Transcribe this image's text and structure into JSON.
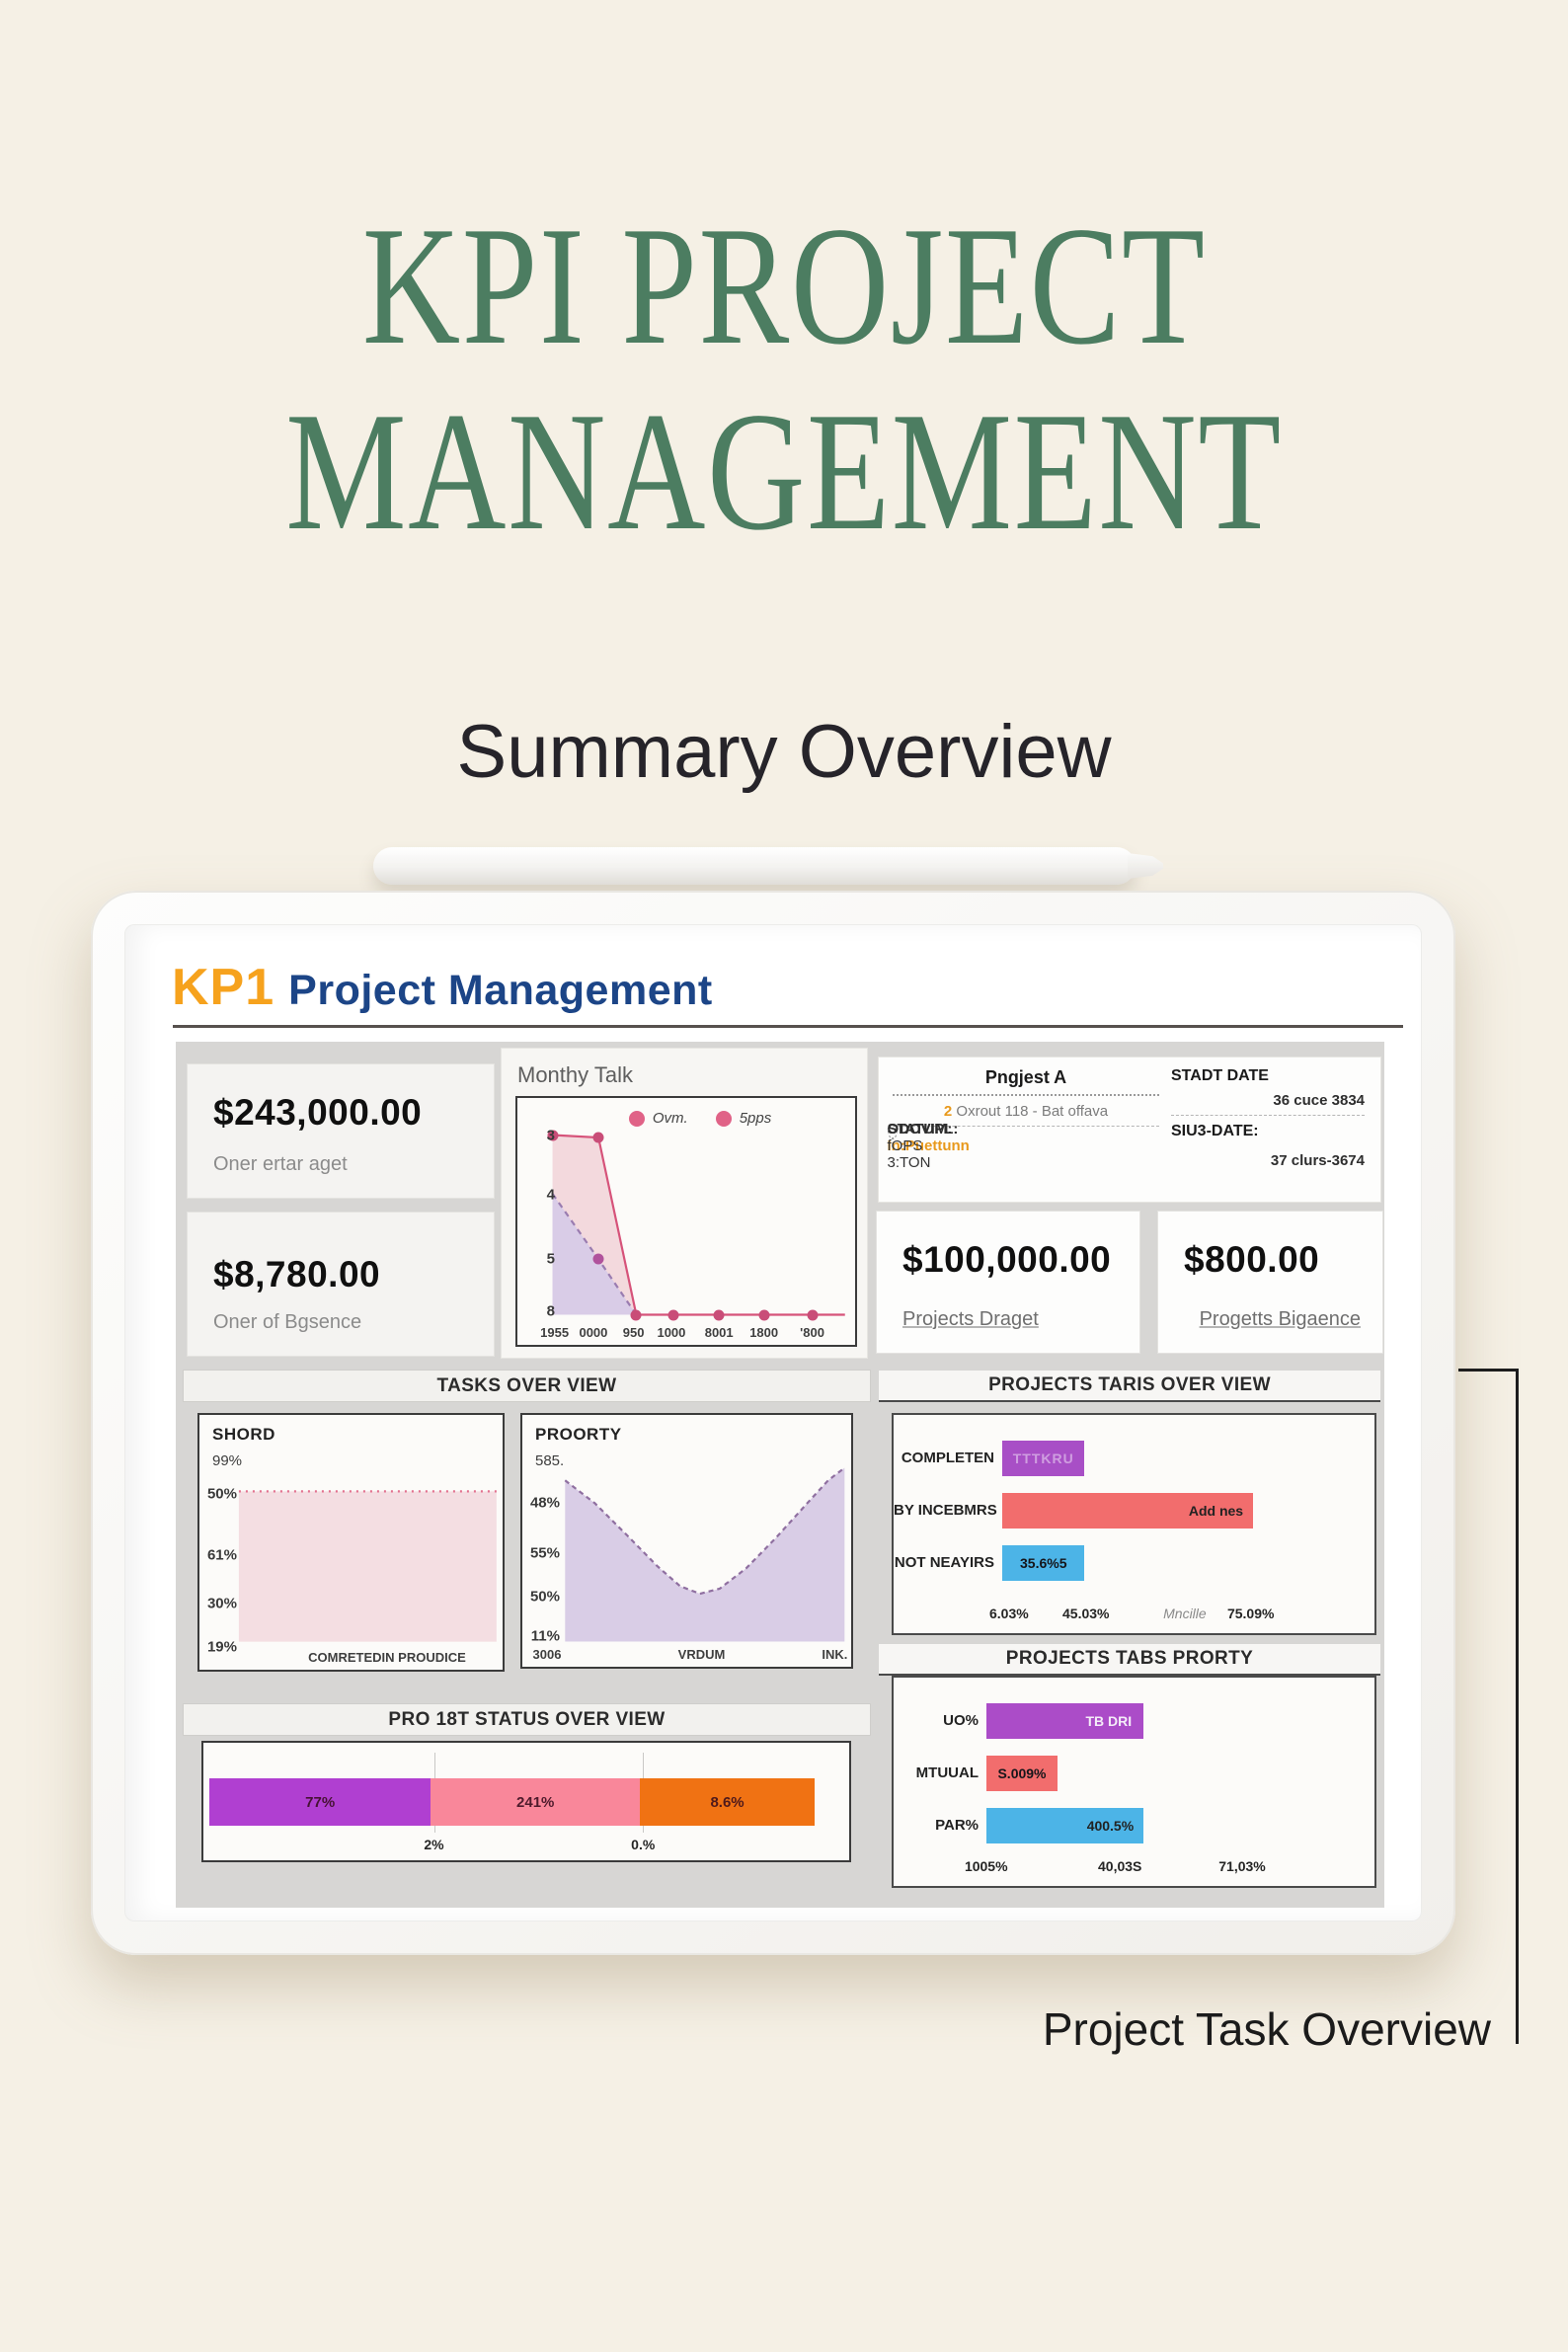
{
  "page": {
    "title_line1": "KPI PROJECT",
    "title_line2": "MANAGEMENT",
    "subtitle": "Summary Overview",
    "callout": "Project Task Overview"
  },
  "dashboard": {
    "brand": "KP1",
    "heading": "Project Management",
    "cards": [
      {
        "value": "$243,000.00",
        "label": "Oner ertar aget"
      },
      {
        "value": "$8,780.00",
        "label": "Oner of Bgsence"
      },
      {
        "value": "$100,000.00",
        "label": "Projects Draget"
      },
      {
        "value": "$800.00",
        "label": "Progetts Bigaence"
      }
    ],
    "project_info": {
      "title": "Pngjest A",
      "line1_num": "2",
      "line1_rest": "Oxrout 118 - Bat offava",
      "status_label": "STATUPL:",
      "status_value": "In:Puettunn",
      "owner_label": "ODOVIM:",
      "owner_value": "fOPS 3:TON",
      "start_label": "STADT DATE",
      "start_value": "36 cuce 3834",
      "end_label": "SIU3-DATE:",
      "end_value": "37 clurs-3674"
    },
    "section_headers": {
      "tasks": "TASKS OVER VIEW"
    }
  },
  "chart_data": [
    {
      "id": "monthly_talk",
      "type": "area",
      "title": "Monthy Talk",
      "legend": [
        {
          "t": "Ovm."
        },
        {
          "t": "5pps"
        }
      ],
      "y_ticks": [
        {
          "t": "3",
          "p": 15
        },
        {
          "t": "4",
          "p": 39
        },
        {
          "t": "5",
          "p": 65
        },
        {
          "t": "8",
          "p": 86.5
        }
      ],
      "x_ticks": [
        {
          "t": "1955",
          "p": 11
        },
        {
          "t": "0000",
          "p": 22.5
        },
        {
          "t": "950",
          "p": 34.4
        },
        {
          "t": "1000",
          "p": 45.6
        },
        {
          "t": "8001",
          "p": 59.7
        },
        {
          "t": "1800",
          "p": 73
        },
        {
          "t": "'800",
          "p": 87.3
        }
      ],
      "series": [
        {
          "name": "Ovm.",
          "dash": "none",
          "color": "#d6537a",
          "dotcolor": "#c94d78",
          "fill": "#f3d9dd",
          "points": [
            [
              10.4,
              15
            ],
            [
              24,
              16
            ],
            [
              35.2,
              87.8
            ],
            [
              97,
              87.8
            ]
          ],
          "baseline": 87.8,
          "dots": [
            [
              10.4,
              15
            ],
            [
              24,
              16
            ],
            [
              35.2,
              87.8
            ],
            [
              46.2,
              87.8
            ],
            [
              59.7,
              87.8
            ],
            [
              73,
              87.8
            ],
            [
              87.3,
              87.8
            ]
          ]
        },
        {
          "name": "5pps",
          "dash": "6,5",
          "color": "#9a7cb0",
          "dotcolor": "#b0529c",
          "fill": "#d9cce7",
          "points": [
            [
              10.4,
              38.8
            ],
            [
              24,
              65.3
            ],
            [
              35.2,
              87.8
            ]
          ],
          "baseline": 87.8,
          "dots": [
            [
              24,
              65.3
            ]
          ]
        }
      ]
    },
    {
      "id": "shord",
      "type": "area",
      "title": "SHORD",
      "subtitle": "99%",
      "y_ticks": [
        {
          "t": "50%",
          "p": 31
        },
        {
          "t": "61%",
          "p": 55
        },
        {
          "t": "30%",
          "p": 74
        },
        {
          "t": "19%",
          "p": 91
        }
      ],
      "x_ticks": [
        {
          "t": "COMRETED",
          "p": 48
        },
        {
          "t": "IN PROUDICE",
          "p": 74
        }
      ],
      "series": [
        {
          "name": "SHORD",
          "dash": "2,5",
          "color": "#e2708e",
          "dotcolor": "#e2708e",
          "fill": "#f4dee2",
          "points": [
            [
              13,
              30
            ],
            [
              98,
              30
            ]
          ],
          "baseline": 89,
          "dots": []
        }
      ]
    },
    {
      "id": "proorty",
      "type": "area",
      "title": "PROORTY",
      "subtitle": "585.",
      "y_ticks": [
        {
          "t": "48%",
          "p": 35
        },
        {
          "t": "55%",
          "p": 55
        },
        {
          "t": "50%",
          "p": 72
        },
        {
          "t": "11%",
          "p": 88
        }
      ],
      "x_ticks": [
        {
          "t": "3006",
          "p": 7.5
        },
        {
          "t": "VRDUM",
          "p": 54.5
        },
        {
          "t": "INK.",
          "p": 95
        }
      ],
      "series": [
        {
          "name": "PROORTY",
          "dash": "5,4",
          "color": "#8f6fa0",
          "dotcolor": "#8f6fa0",
          "fill": "#d9cde6",
          "points": [
            [
              13,
              26
            ],
            [
              22,
              35
            ],
            [
              32,
              48
            ],
            [
              41,
              60
            ],
            [
              48,
              68
            ],
            [
              54,
              71
            ],
            [
              60,
              69
            ],
            [
              68,
              61
            ],
            [
              77,
              49
            ],
            [
              86,
              36
            ],
            [
              93,
              26
            ],
            [
              98,
              21
            ]
          ],
          "baseline": 90,
          "dots": []
        }
      ]
    },
    {
      "id": "taris",
      "type": "hbar",
      "title": "PROJECTS TARIS OVER VIEW",
      "label_w": 102,
      "rows": [
        {
          "label": "COMPLETEN",
          "color": "#a84fc6",
          "w": 23,
          "value": "TTTKRU",
          "vclass": "v-faint"
        },
        {
          "label": "BY INCEBMRS",
          "color": "#f26d6d",
          "w": 70,
          "value": "Add nes",
          "vclass": "v-right-dark"
        },
        {
          "label": "NOT NEAYIRS",
          "color": "#4cb4e7",
          "w": 23,
          "value": "35.6%5",
          "vclass": "v-center-dark"
        }
      ],
      "x_ticks": [
        {
          "t": "6.03%",
          "p": 4
        },
        {
          "t": "45.03%",
          "p": 25
        },
        {
          "t": "Mncille",
          "p": 52,
          "em": 1
        },
        {
          "t": "75.09%",
          "p": 70
        }
      ]
    },
    {
      "id": "tabs",
      "type": "hbar",
      "title": "PROJECTS TABS PRORTY",
      "label_w": 86,
      "rows": [
        {
          "label": "UO%",
          "color": "#ab4cc8",
          "w": 42,
          "value": "TB DRI",
          "vclass": "v-right-light"
        },
        {
          "label": "MTUUAL",
          "color": "#f26d6d",
          "w": 19,
          "value": "S.009%",
          "vclass": "v-center-dark"
        },
        {
          "label": "PAR%",
          "color": "#4cb4e7",
          "w": 42,
          "value": "400.5%",
          "vclass": "v-right-dark"
        }
      ],
      "x_ticks": [
        {
          "t": "1005%",
          "p": 2
        },
        {
          "t": "40,03S",
          "p": 37
        },
        {
          "t": "71,03%",
          "p": 69
        }
      ]
    },
    {
      "id": "status",
      "type": "stacked",
      "title": "PRO 18T STATUS OVER VIEW",
      "segments": [
        {
          "t": "77%",
          "c": "#b03fd1",
          "w": 35.5
        },
        {
          "t": "241%",
          "c": "#f9879a",
          "w": 33.5
        },
        {
          "t": "8.6%",
          "c": "#f07213",
          "w": 28
        }
      ],
      "below": [
        {
          "t": "2%",
          "p": 36
        },
        {
          "t": "0.%",
          "p": 69.5
        }
      ]
    }
  ]
}
